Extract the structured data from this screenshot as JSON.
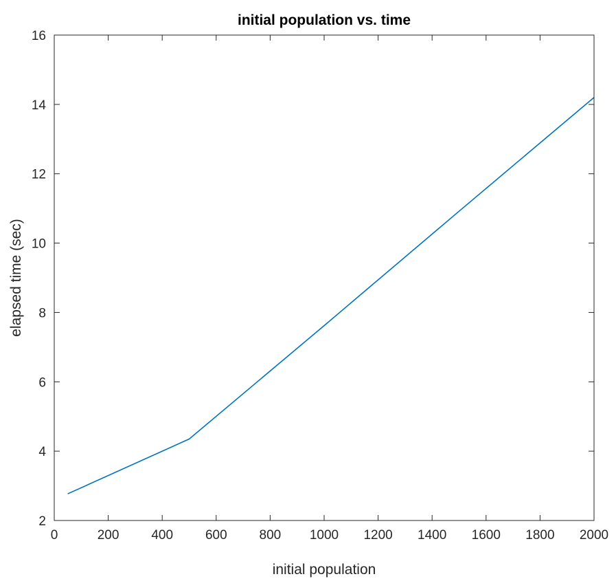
{
  "chart_data": {
    "type": "line",
    "title": "initial population vs. time",
    "xlabel": "initial population",
    "ylabel": "elapsed time (sec)",
    "xlim": [
      0,
      2000
    ],
    "ylim": [
      2,
      16
    ],
    "xticks": [
      0,
      200,
      400,
      600,
      800,
      1000,
      1200,
      1400,
      1600,
      1800,
      2000
    ],
    "yticks": [
      2,
      4,
      6,
      8,
      10,
      12,
      14,
      16
    ],
    "xtick_labels": [
      "0",
      "200",
      "400",
      "600",
      "800",
      "1000",
      "1200",
      "1400",
      "1600",
      "1800",
      "2000"
    ],
    "ytick_labels": [
      "2",
      "4",
      "6",
      "8",
      "10",
      "12",
      "14",
      "16"
    ],
    "grid": false,
    "series": [
      {
        "color": "#0072BD",
        "x": [
          50,
          500,
          1000,
          1500,
          2000
        ],
        "y": [
          2.77,
          4.35,
          7.62,
          10.92,
          14.2
        ]
      }
    ]
  }
}
